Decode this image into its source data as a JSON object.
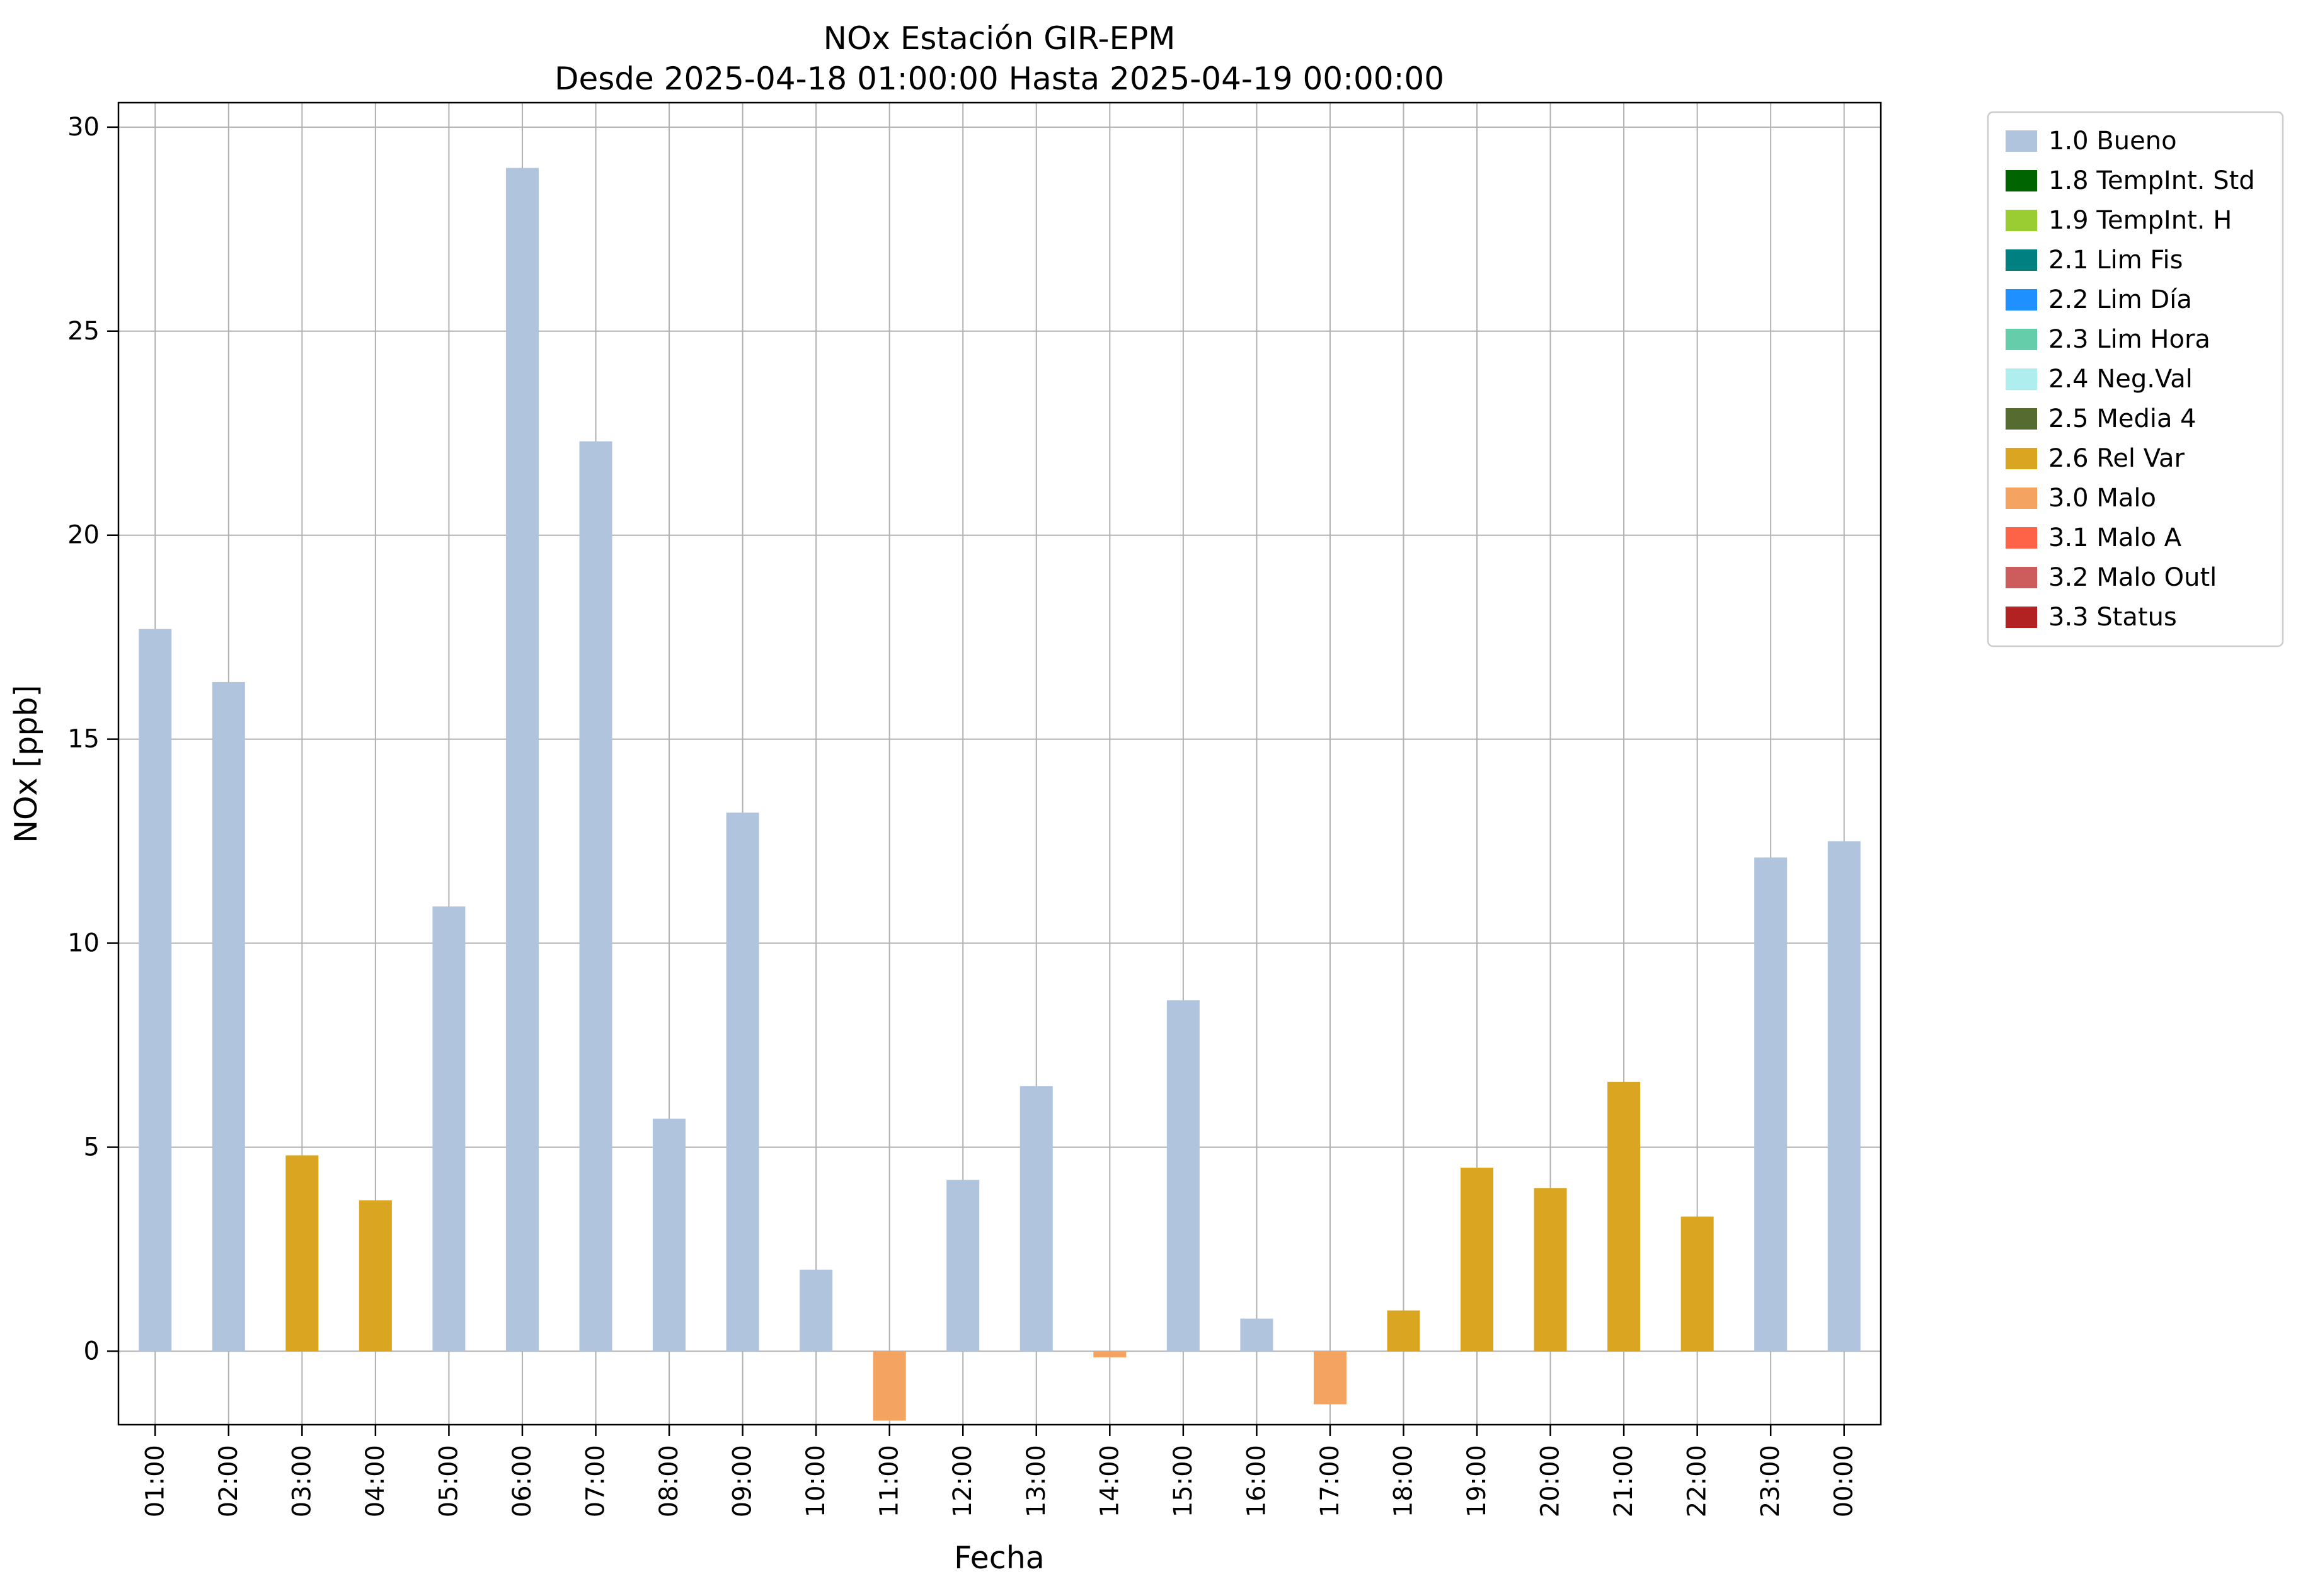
{
  "chart_data": {
    "type": "bar",
    "title": "NOx Estación GIR-EPM",
    "subtitle": "Desde 2025-04-18 01:00:00 Hasta 2025-04-19 00:00:00",
    "xlabel": "Fecha",
    "ylabel": "NOx [ppb]",
    "ylim": [
      -1.8,
      30.6
    ],
    "yticks": [
      0,
      5,
      10,
      15,
      20,
      25,
      30
    ],
    "grid": true,
    "legend_position": "upper right outside",
    "categories": [
      "01:00",
      "02:00",
      "03:00",
      "04:00",
      "05:00",
      "06:00",
      "07:00",
      "08:00",
      "09:00",
      "10:00",
      "11:00",
      "12:00",
      "13:00",
      "14:00",
      "15:00",
      "16:00",
      "17:00",
      "18:00",
      "19:00",
      "20:00",
      "21:00",
      "22:00",
      "23:00",
      "00:00"
    ],
    "values": [
      17.7,
      16.4,
      4.8,
      3.7,
      10.9,
      29.0,
      22.3,
      5.7,
      13.2,
      2.0,
      -1.7,
      4.2,
      6.5,
      -0.15,
      8.6,
      0.8,
      -1.3,
      1.0,
      4.5,
      4.0,
      6.6,
      3.3,
      12.1,
      12.5
    ],
    "bar_status": [
      "1.0 Bueno",
      "1.0 Bueno",
      "2.6 Rel Var",
      "2.6 Rel Var",
      "1.0 Bueno",
      "1.0 Bueno",
      "1.0 Bueno",
      "1.0 Bueno",
      "1.0 Bueno",
      "1.0 Bueno",
      "3.0 Malo",
      "1.0 Bueno",
      "1.0 Bueno",
      "3.0 Malo",
      "1.0 Bueno",
      "1.0 Bueno",
      "3.0 Malo",
      "2.6 Rel Var",
      "2.6 Rel Var",
      "2.6 Rel Var",
      "2.6 Rel Var",
      "2.6 Rel Var",
      "1.0 Bueno",
      "1.0 Bueno"
    ],
    "legend": [
      {
        "label": "1.0 Bueno",
        "color": "#B0C4DE"
      },
      {
        "label": "1.8 TempInt. Std",
        "color": "#006400"
      },
      {
        "label": "1.9 TempInt. H",
        "color": "#9ACD32"
      },
      {
        "label": "2.1 Lim Fis",
        "color": "#008080"
      },
      {
        "label": "2.2 Lim Día",
        "color": "#1E90FF"
      },
      {
        "label": "2.3 Lim Hora",
        "color": "#66CDAA"
      },
      {
        "label": "2.4 Neg.Val",
        "color": "#AFEEEE"
      },
      {
        "label": "2.5 Media 4",
        "color": "#556B2F"
      },
      {
        "label": "2.6 Rel Var",
        "color": "#DAA520"
      },
      {
        "label": "3.0 Malo",
        "color": "#F4A460"
      },
      {
        "label": "3.1 Malo A",
        "color": "#FF6347"
      },
      {
        "label": "3.2 Malo Outl",
        "color": "#CD5C5C"
      },
      {
        "label": "3.3 Status",
        "color": "#B22222"
      }
    ],
    "style_colors": {
      "grid": "#b0b0b0",
      "axes": "#000000",
      "legend_border": "#cccccc",
      "background": "#ffffff"
    }
  }
}
